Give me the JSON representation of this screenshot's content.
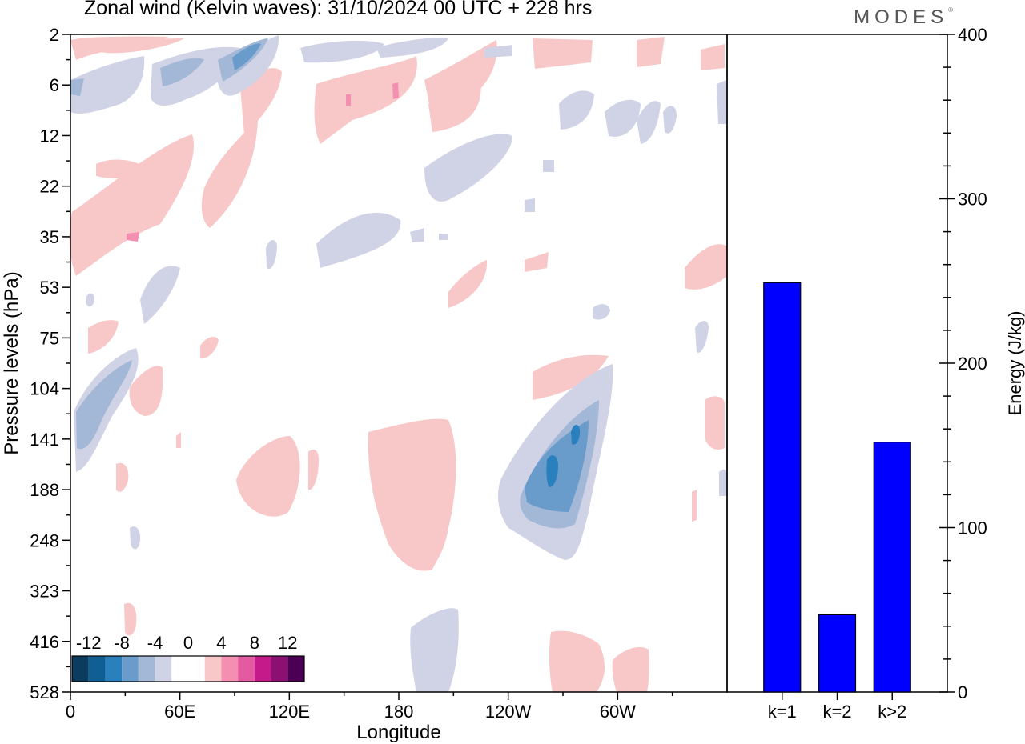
{
  "header": {
    "title": "Zonal wind (Kelvin waves):  31/10/2024  00 UTC  + 228 hrs",
    "brand": "MODES",
    "brand_mark": "®"
  },
  "colors": {
    "neg_light": "#d0d3e6",
    "neg_mid": "#a3b8d6",
    "neg_dark": "#6a9ccb",
    "neg_deep": "#2a7fbd",
    "pos_light": "#f8c8c8",
    "pos_mid": "#f48fb1",
    "bar": "#0000ff"
  },
  "chart_data": [
    {
      "type": "heatmap",
      "title": "Zonal wind (Kelvin waves):  31/10/2024  00 UTC  + 228 hrs",
      "xlabel": "Longitude",
      "ylabel": "Pressure levels (hPa)",
      "x_ticks": [
        "0",
        "60E",
        "120E",
        "180",
        "120W",
        "60W"
      ],
      "y_ticks": [
        "2",
        "6",
        "12",
        "22",
        "35",
        "53",
        "75",
        "104",
        "141",
        "188",
        "248",
        "323",
        "416",
        "528"
      ],
      "colorbar": {
        "labels": [
          "-12",
          "-8",
          "-4",
          "0",
          "4",
          "8",
          "12"
        ],
        "colors": [
          "#0b3c5d",
          "#0f5f94",
          "#2a7fbd",
          "#6a9ccb",
          "#a3b8d6",
          "#d0d3e6",
          "#ffffff",
          "#ffffff",
          "#f8c8c8",
          "#f48fb1",
          "#e45aa0",
          "#c51b8a",
          "#8e0f72",
          "#4b0055"
        ]
      }
    },
    {
      "type": "bar",
      "categories": [
        "k=1",
        "k=2",
        "k>2"
      ],
      "values": [
        249,
        47,
        152
      ],
      "ylabel": "Energy (J/kg)",
      "ylim": [
        0,
        400
      ],
      "y_ticks": [
        0,
        100,
        200,
        300,
        400
      ],
      "color": "#0000ff"
    }
  ]
}
